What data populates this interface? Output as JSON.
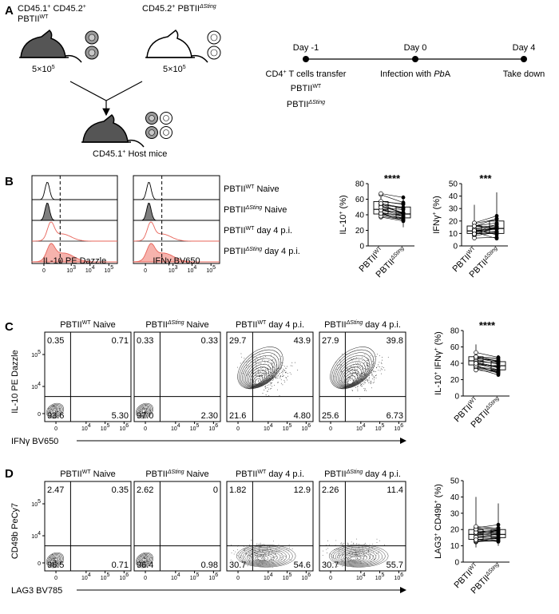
{
  "panelA": {
    "letter": "A",
    "donor_wt": {
      "line1": "CD45.1",
      "sup1": "+",
      "line1b": " CD45.2",
      "sup1b": "+",
      "line2": "PBTII",
      "sup2": "WT",
      "count": "5×10",
      "count_exp": "5"
    },
    "donor_ko": {
      "pre": "CD45.2",
      "sup_pre": "+",
      "name": " PBTII",
      "sup": "ΔSting",
      "count": "5×10",
      "count_exp": "5"
    },
    "host_label": "CD45.1",
    "host_sup": "+",
    "host_suffix": " Host mice",
    "timeline": {
      "days": [
        "Day -1",
        "Day 0",
        "Day 4"
      ],
      "event1": "CD4",
      "event1_sup": "+",
      "event1_rest": " T cells transfer",
      "event1_wt": "PBTII",
      "event1_wt_sup": "WT",
      "event1_ko": "PBTII",
      "event1_ko_sup": "ΔSting",
      "event2": "Infection with ",
      "event2_italic": "Pb",
      "event2_end": "A",
      "event3": "Take down"
    }
  },
  "panelB": {
    "letter": "B",
    "histogram_xlabels": [
      "IL-10 PE Dazzle",
      "IFNγ BV650"
    ],
    "hist_ticks": [
      "0",
      "10",
      "10",
      "10"
    ],
    "hist_tick_exps": [
      "",
      "3",
      "4",
      "5"
    ],
    "legend": [
      {
        "base": "PBTII",
        "sup": "WT",
        "rest": " Naive"
      },
      {
        "base": "PBTII",
        "sup": "ΔSting",
        "rest": " Naive"
      },
      {
        "base": "PBTII",
        "sup": "WT",
        "rest": " day 4 p.i."
      },
      {
        "base": "PBTII",
        "sup": "ΔSting",
        "rest": " day 4 p.i."
      }
    ],
    "colors": {
      "naive_fill": "#7f7f7f",
      "infected_line": "#e8645a",
      "infected_fill": "#f6b3ad"
    }
  },
  "chart_data": [
    {
      "type": "box-paired",
      "ylabel": "IL-10",
      "ylabel_sup": "+",
      "ylabel_rest": " (%)",
      "ylim": [
        0,
        80
      ],
      "yticks": [
        0,
        20,
        40,
        60,
        80
      ],
      "categories": [
        "PBTII",
        "PBTII"
      ],
      "category_sups": [
        "WT",
        "ΔSting"
      ],
      "significance": "****",
      "box": [
        {
          "q1": 41,
          "median": 47,
          "q3": 57,
          "min": 37,
          "max": 68
        },
        {
          "q1": 36,
          "median": 41,
          "q3": 50,
          "min": 24,
          "max": 65
        }
      ]
    },
    {
      "type": "box-paired",
      "ylabel": "IFNγ",
      "ylabel_sup": "+",
      "ylabel_rest": " (%)",
      "ylim": [
        0,
        50
      ],
      "yticks": [
        0,
        10,
        20,
        30,
        40,
        50
      ],
      "categories": [
        "PBTII",
        "PBTII"
      ],
      "category_sups": [
        "WT",
        "ΔSting"
      ],
      "significance": "***",
      "box": [
        {
          "q1": 10,
          "median": 12,
          "q3": 16,
          "min": 6,
          "max": 33
        },
        {
          "q1": 10,
          "median": 14,
          "q3": 20,
          "min": 5,
          "max": 43
        }
      ]
    },
    {
      "type": "box-paired",
      "ylabel": "IL-10",
      "ylabel_sup": "+",
      "ylabel_mid": " IFNγ",
      "ylabel_sup2": "+",
      "ylabel_rest": " (%)",
      "ylim": [
        0,
        80
      ],
      "yticks": [
        0,
        20,
        40,
        60,
        80
      ],
      "categories": [
        "PBTII",
        "PBTII"
      ],
      "category_sups": [
        "WT",
        "ΔSting"
      ],
      "significance": "****",
      "box": [
        {
          "q1": 38,
          "median": 43,
          "q3": 48,
          "min": 30,
          "max": 63
        },
        {
          "q1": 32,
          "median": 37,
          "q3": 42,
          "min": 24,
          "max": 50
        }
      ]
    },
    {
      "type": "box-paired",
      "ylabel": "LAG3",
      "ylabel_sup": "+",
      "ylabel_mid": " CD49b",
      "ylabel_sup2": "+",
      "ylabel_rest": " (%)",
      "ylim": [
        0,
        50
      ],
      "yticks": [
        0,
        10,
        20,
        30,
        40,
        50
      ],
      "categories": [
        "PBTII",
        "PBTII"
      ],
      "category_sups": [
        "WT",
        "ΔSting"
      ],
      "significance": "",
      "box": [
        {
          "q1": 14,
          "median": 17,
          "q3": 20,
          "min": 9,
          "max": 40
        },
        {
          "q1": 15,
          "median": 17,
          "q3": 20,
          "min": 10,
          "max": 36
        }
      ]
    }
  ],
  "panelC": {
    "letter": "C",
    "ylabel": "IL-10 PE Dazzle",
    "xlabel": "IFNγ BV650",
    "ytick_labels": [
      "0",
      "10",
      "10"
    ],
    "ytick_exps": [
      "",
      "4",
      "5"
    ],
    "plots": [
      {
        "base": "PBTII",
        "sup": "WT",
        "rest": " Naive",
        "quadrants": [
          "0.35",
          "0.71",
          "93.6",
          "5.30"
        ]
      },
      {
        "base": "PBTII",
        "sup": "ΔSting",
        "rest": " Naive",
        "quadrants": [
          "0.33",
          "0.33",
          "97.0",
          "2.30"
        ]
      },
      {
        "base": "PBTII",
        "sup": "WT",
        "rest": " day 4 p.i.",
        "quadrants": [
          "29.7",
          "43.9",
          "21.6",
          "4.80"
        ]
      },
      {
        "base": "PBTII",
        "sup": "ΔSting",
        "rest": " day 4 p.i.",
        "quadrants": [
          "27.9",
          "39.8",
          "25.6",
          "6.73"
        ]
      }
    ]
  },
  "panelD": {
    "letter": "D",
    "ylabel": "CD49b PeCy7",
    "xlabel": "LAG3 BV785",
    "ytick_labels": [
      "0",
      "10",
      "10"
    ],
    "ytick_exps": [
      "",
      "4",
      "5"
    ],
    "plots": [
      {
        "base": "PBTII",
        "sup": "WT",
        "rest": " Naive",
        "quadrants": [
          "2.47",
          "0.35",
          "96.5",
          "0.71"
        ]
      },
      {
        "base": "PBTII",
        "sup": "ΔSting",
        "rest": " Naive",
        "quadrants": [
          "2.62",
          "0",
          "96.4",
          "0.98"
        ]
      },
      {
        "base": "PBTII",
        "sup": "WT",
        "rest": " day 4 p.i.",
        "quadrants": [
          "1.82",
          "12.9",
          "30.7",
          "54.6"
        ]
      },
      {
        "base": "PBTII",
        "sup": "ΔSting",
        "rest": " day 4 p.i.",
        "quadrants": [
          "2.26",
          "11.4",
          "30.7",
          "55.7"
        ]
      }
    ]
  },
  "flow_xticks": [
    "0",
    "10",
    "10",
    "10"
  ],
  "flow_xtick_exps": [
    "",
    "4",
    "5",
    "6"
  ]
}
